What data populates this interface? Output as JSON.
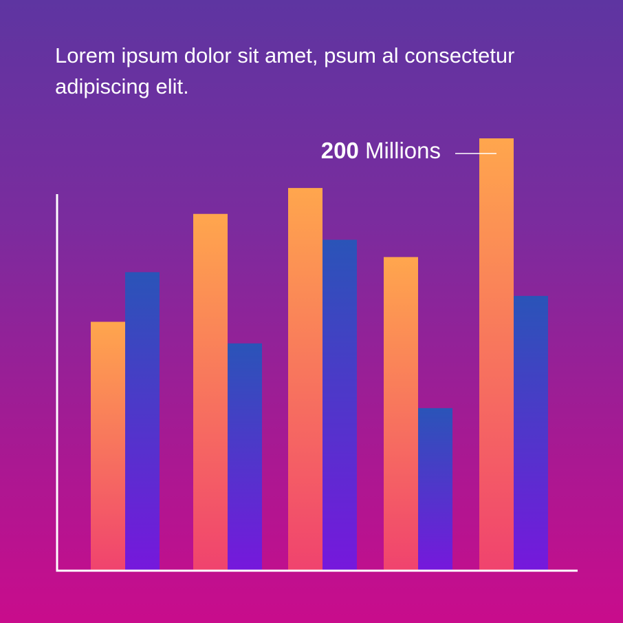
{
  "headline": "Lorem ipsum dolor sit amet, psum  al consectetur adipiscing elit.",
  "callout": {
    "value": "200",
    "unit": "Millions"
  },
  "colors": {
    "background_top": "#5e35a1",
    "background_bottom": "#c90c8c",
    "series_a_top": "#ffa64d",
    "series_a_bottom": "#f0436e",
    "series_b_top": "#2a54b8",
    "series_b_bottom": "#7618dc",
    "axis": "#ffffff"
  },
  "chart_data": {
    "type": "bar",
    "title": "",
    "xlabel": "",
    "ylabel": "",
    "categories": [
      "",
      "",
      "",
      "",
      ""
    ],
    "series": [
      {
        "values": [
          115,
          165,
          177,
          145,
          200
        ]
      },
      {
        "values": [
          138,
          105,
          153,
          75,
          127
        ]
      }
    ],
    "ylim": [
      0,
      225
    ],
    "grid": false,
    "legend": "none",
    "annotation": {
      "series_index": 0,
      "category_index": 4,
      "text": "200 Millions"
    }
  }
}
